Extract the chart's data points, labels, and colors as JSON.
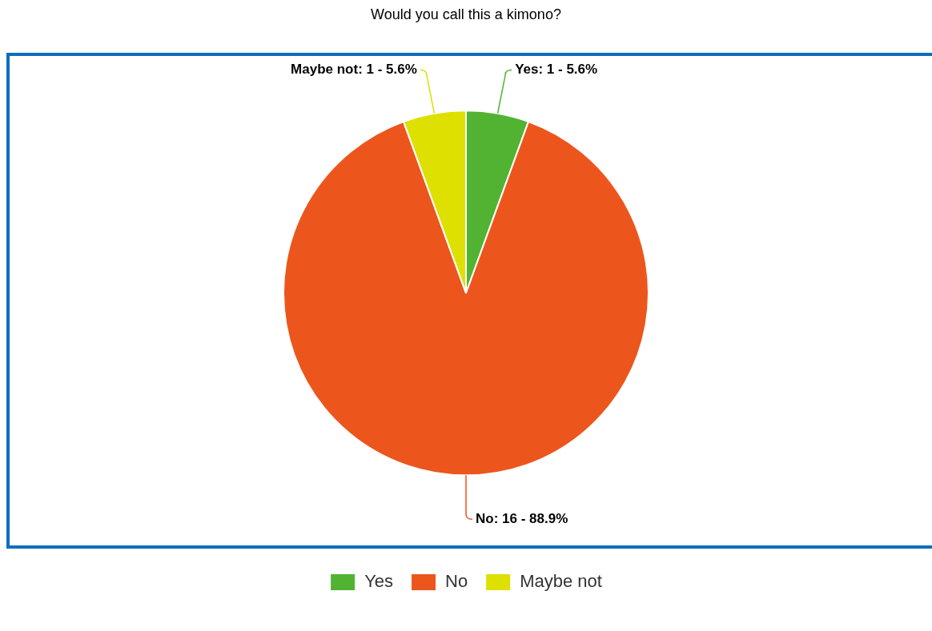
{
  "chart_data": {
    "type": "pie",
    "title": "Would you call this a kimono?",
    "categories": [
      "Yes",
      "No",
      "Maybe not"
    ],
    "values": [
      1,
      16,
      1
    ],
    "colors": [
      "#52b333",
      "#ec561d",
      "#dde000"
    ],
    "value_labels": [
      "Yes: 1 - 5.6%",
      "No: 16 - 88.9%",
      "Maybe not: 1 - 5.6%"
    ],
    "legend": "bottom"
  }
}
